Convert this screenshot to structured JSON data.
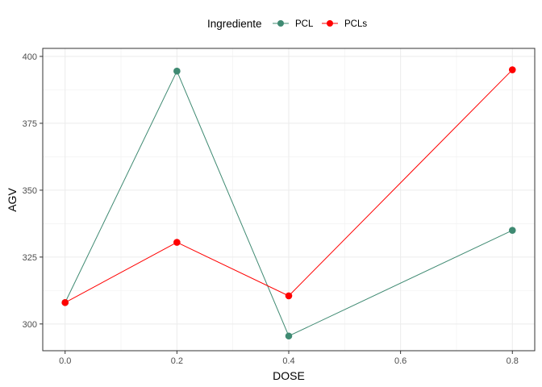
{
  "chart_data": {
    "type": "line",
    "xlabel": "DOSE",
    "ylabel": "AGV",
    "x": [
      0.0,
      0.2,
      0.4,
      0.8
    ],
    "xlim": [
      -0.04,
      0.84
    ],
    "ylim": [
      290,
      403
    ],
    "x_ticks": [
      0.0,
      0.2,
      0.4,
      0.6,
      0.8
    ],
    "x_tick_labels": [
      "0.0",
      "0.2",
      "0.4",
      "0.6",
      "0.8"
    ],
    "y_ticks": [
      300,
      325,
      350,
      375,
      400
    ],
    "y_tick_labels": [
      "300",
      "325",
      "350",
      "375",
      "400"
    ],
    "grid": true,
    "legend": {
      "title": "Ingrediente",
      "position": "top"
    },
    "series": [
      {
        "name": "PCL",
        "color": "#3f8a72",
        "values": [
          308,
          394.5,
          295.5,
          335
        ]
      },
      {
        "name": "PCLs",
        "color": "#ff0000",
        "values": [
          308,
          330.5,
          310.5,
          395
        ]
      }
    ]
  }
}
